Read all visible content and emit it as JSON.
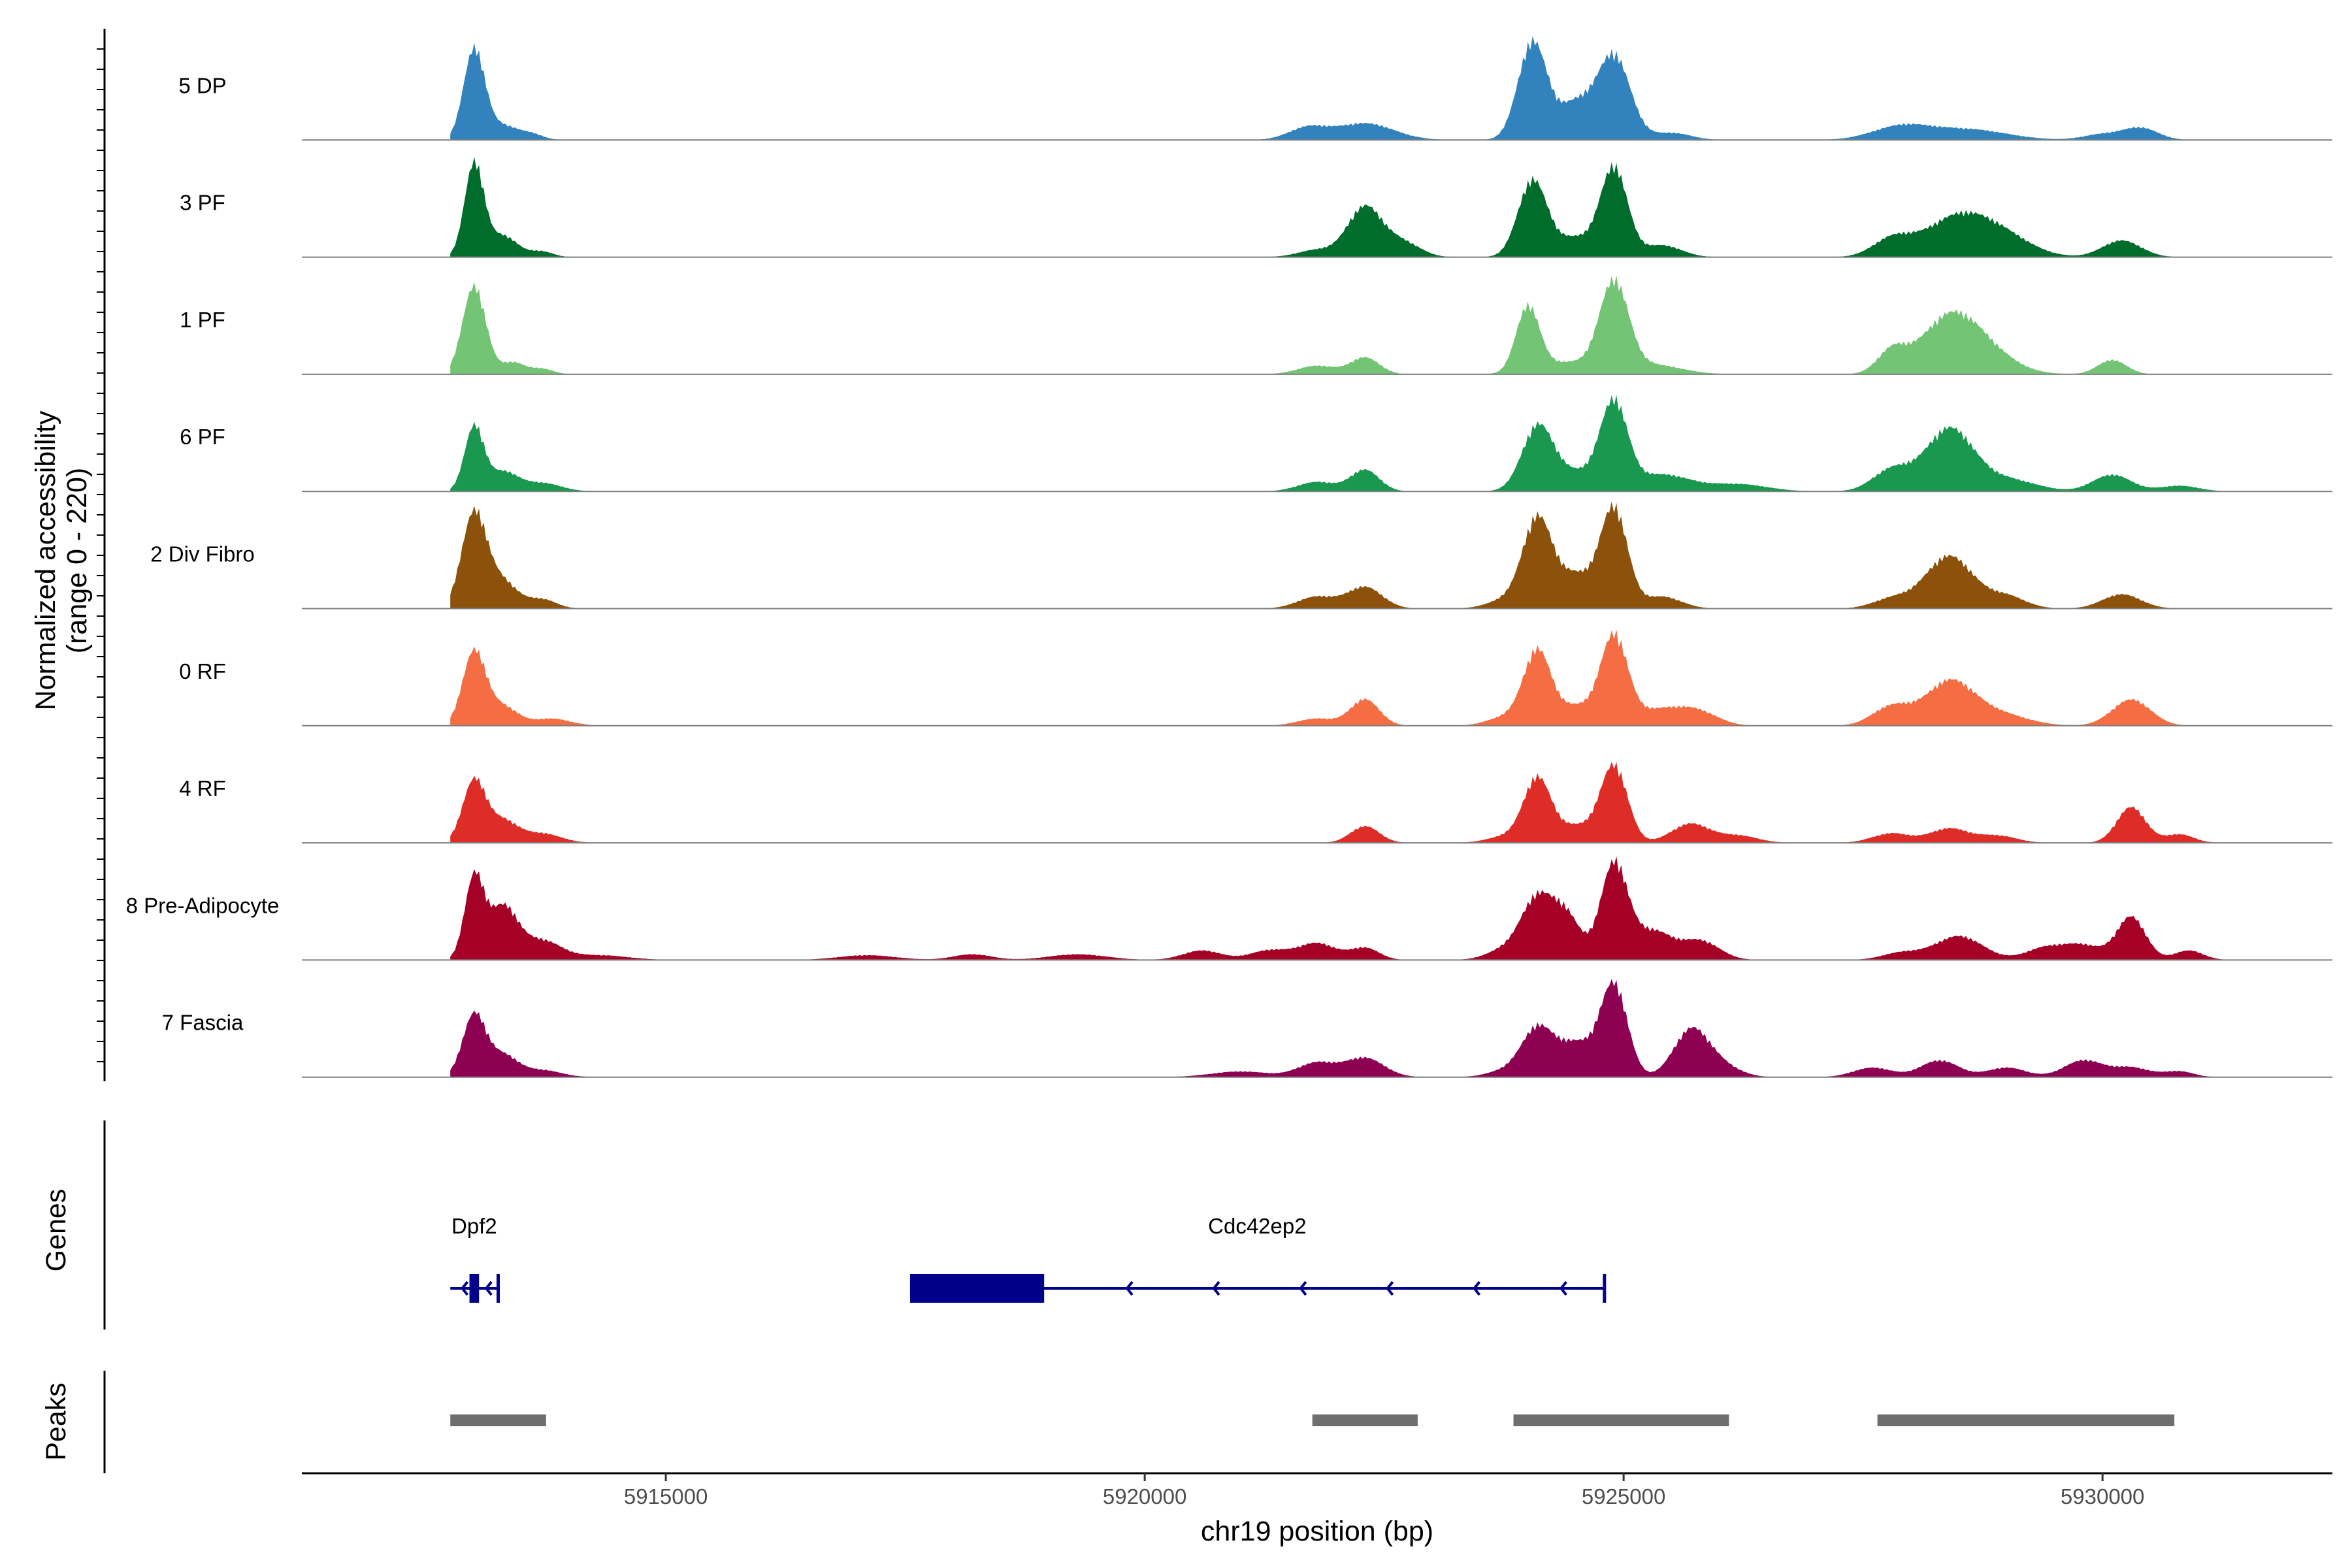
{
  "chart_data": {
    "type": "area",
    "title": "",
    "ylabel": "Normalized accessibility (range 0 - 220)",
    "ylabel_line1": "Normalized accessibility",
    "ylabel_line2": "(range 0 - 220)",
    "y_range": [
      0,
      220
    ],
    "xlabel": "chr19 position (bp)",
    "xlim": [
      5911200,
      5932400
    ],
    "x_ticks": [
      5915000,
      5920000,
      5925000,
      5930000
    ],
    "x_tick_labels": [
      "5915000",
      "5920000",
      "5925000",
      "5930000"
    ],
    "series": [
      {
        "name": "5 DP",
        "color": "#3182bd",
        "peaks": [
          [
            5913000,
            190,
            110
          ],
          [
            5913300,
            30,
            150
          ],
          [
            5913600,
            12,
            120
          ],
          [
            5921700,
            25,
            200
          ],
          [
            5922300,
            35,
            300
          ],
          [
            5924050,
            205,
            150
          ],
          [
            5924500,
            75,
            180
          ],
          [
            5924900,
            175,
            170
          ],
          [
            5925500,
            15,
            200
          ],
          [
            5927900,
            28,
            300
          ],
          [
            5928600,
            22,
            400
          ],
          [
            5930000,
            12,
            200
          ],
          [
            5930400,
            25,
            180
          ]
        ]
      },
      {
        "name": "3 PF",
        "color": "#006d2c",
        "peaks": [
          [
            5913000,
            195,
            100
          ],
          [
            5913300,
            45,
            150
          ],
          [
            5913700,
            12,
            120
          ],
          [
            5921800,
            15,
            200
          ],
          [
            5922300,
            105,
            180
          ],
          [
            5922700,
            30,
            180
          ],
          [
            5924050,
            160,
            150
          ],
          [
            5924500,
            40,
            200
          ],
          [
            5924900,
            185,
            140
          ],
          [
            5925400,
            25,
            200
          ],
          [
            5927800,
            35,
            200
          ],
          [
            5928500,
            85,
            350
          ],
          [
            5929000,
            30,
            300
          ],
          [
            5930200,
            35,
            200
          ]
        ]
      },
      {
        "name": "1 PF",
        "color": "#74c476",
        "peaks": [
          [
            5913000,
            185,
            120
          ],
          [
            5913400,
            25,
            120
          ],
          [
            5913700,
            12,
            120
          ],
          [
            5921800,
            18,
            200
          ],
          [
            5922300,
            35,
            150
          ],
          [
            5924000,
            135,
            120
          ],
          [
            5924400,
            25,
            300
          ],
          [
            5924900,
            185,
            150
          ],
          [
            5925300,
            20,
            300
          ],
          [
            5927800,
            45,
            150
          ],
          [
            5928400,
            115,
            300
          ],
          [
            5928800,
            35,
            300
          ],
          [
            5930100,
            30,
            150
          ]
        ]
      },
      {
        "name": "6 PF",
        "color": "#1a9850",
        "peaks": [
          [
            5913000,
            135,
            100
          ],
          [
            5913300,
            40,
            150
          ],
          [
            5913700,
            18,
            200
          ],
          [
            5921800,
            20,
            200
          ],
          [
            5922300,
            45,
            150
          ],
          [
            5924100,
            125,
            160
          ],
          [
            5924500,
            40,
            300
          ],
          [
            5924900,
            170,
            140
          ],
          [
            5925400,
            35,
            300
          ],
          [
            5926200,
            15,
            300
          ],
          [
            5927800,
            45,
            200
          ],
          [
            5928400,
            130,
            250
          ],
          [
            5929000,
            25,
            300
          ],
          [
            5930100,
            35,
            200
          ],
          [
            5930800,
            12,
            200
          ]
        ]
      },
      {
        "name": "2 Div Fibro",
        "color": "#8c510a",
        "peaks": [
          [
            5913000,
            200,
            130
          ],
          [
            5913300,
            55,
            150
          ],
          [
            5913700,
            20,
            150
          ],
          [
            5921800,
            25,
            200
          ],
          [
            5922300,
            45,
            180
          ],
          [
            5923800,
            20,
            200
          ],
          [
            5924100,
            180,
            150
          ],
          [
            5924500,
            70,
            200
          ],
          [
            5924900,
            205,
            140
          ],
          [
            5925400,
            25,
            200
          ],
          [
            5927800,
            20,
            200
          ],
          [
            5928400,
            110,
            250
          ],
          [
            5929000,
            25,
            200
          ],
          [
            5930200,
            30,
            200
          ]
        ]
      },
      {
        "name": "0 RF",
        "color": "#f46d43",
        "peaks": [
          [
            5913000,
            155,
            120
          ],
          [
            5913300,
            40,
            150
          ],
          [
            5913800,
            15,
            200
          ],
          [
            5921800,
            15,
            200
          ],
          [
            5922300,
            55,
            150
          ],
          [
            5923800,
            20,
            200
          ],
          [
            5924100,
            150,
            140
          ],
          [
            5924500,
            40,
            200
          ],
          [
            5924900,
            180,
            140
          ],
          [
            5925400,
            35,
            300
          ],
          [
            5925800,
            20,
            200
          ],
          [
            5927800,
            40,
            200
          ],
          [
            5928400,
            90,
            250
          ],
          [
            5928900,
            25,
            300
          ],
          [
            5930300,
            55,
            200
          ]
        ]
      },
      {
        "name": "4 RF",
        "color": "#de2d26",
        "peaks": [
          [
            5913000,
            130,
            120
          ],
          [
            5913300,
            45,
            150
          ],
          [
            5913700,
            20,
            200
          ],
          [
            5922300,
            35,
            150
          ],
          [
            5923800,
            15,
            200
          ],
          [
            5924100,
            130,
            140
          ],
          [
            5924500,
            35,
            200
          ],
          [
            5924900,
            160,
            140
          ],
          [
            5925700,
            40,
            200
          ],
          [
            5926200,
            15,
            200
          ],
          [
            5927800,
            20,
            200
          ],
          [
            5928400,
            30,
            200
          ],
          [
            5928900,
            15,
            200
          ],
          [
            5930300,
            75,
            150
          ],
          [
            5930800,
            18,
            150
          ]
        ]
      },
      {
        "name": "8 Pre-Adipocyte",
        "color": "#a50026",
        "peaks": [
          [
            5913000,
            170,
            100
          ],
          [
            5913300,
            110,
            150
          ],
          [
            5913700,
            40,
            200
          ],
          [
            5914300,
            10,
            300
          ],
          [
            5917100,
            10,
            300
          ],
          [
            5918200,
            12,
            200
          ],
          [
            5919300,
            12,
            300
          ],
          [
            5920600,
            20,
            200
          ],
          [
            5921300,
            20,
            200
          ],
          [
            5921800,
            35,
            200
          ],
          [
            5922300,
            25,
            150
          ],
          [
            5923800,
            25,
            200
          ],
          [
            5924100,
            120,
            160
          ],
          [
            5924400,
            90,
            150
          ],
          [
            5924900,
            200,
            140
          ],
          [
            5925300,
            60,
            200
          ],
          [
            5925800,
            40,
            200
          ],
          [
            5927900,
            15,
            200
          ],
          [
            5928500,
            50,
            250
          ],
          [
            5929400,
            25,
            200
          ],
          [
            5929800,
            30,
            200
          ],
          [
            5930300,
            90,
            150
          ],
          [
            5930900,
            20,
            150
          ]
        ]
      },
      {
        "name": "7 Fascia",
        "color": "#8e0152",
        "peaks": [
          [
            5913000,
            130,
            120
          ],
          [
            5913300,
            45,
            150
          ],
          [
            5913700,
            15,
            200
          ],
          [
            5921000,
            12,
            300
          ],
          [
            5921800,
            30,
            200
          ],
          [
            5922300,
            40,
            200
          ],
          [
            5923800,
            15,
            200
          ],
          [
            5924100,
            95,
            160
          ],
          [
            5924500,
            70,
            200
          ],
          [
            5924900,
            190,
            140
          ],
          [
            5925700,
            95,
            180
          ],
          [
            5926000,
            25,
            200
          ],
          [
            5927600,
            20,
            200
          ],
          [
            5928300,
            35,
            200
          ],
          [
            5929000,
            20,
            200
          ],
          [
            5929800,
            35,
            200
          ],
          [
            5930300,
            20,
            200
          ],
          [
            5930800,
            12,
            150
          ]
        ]
      }
    ],
    "genes_title": "Genes",
    "genes": [
      {
        "name": "Dpf2",
        "strand": "-",
        "start": 5912750,
        "end": 5913250,
        "exons": [
          [
            5912950,
            5913050
          ]
        ]
      },
      {
        "name": "Cdc42ep2",
        "strand": "-",
        "start": 5917550,
        "end": 5924800,
        "exons": [
          [
            5917550,
            5918950
          ]
        ]
      }
    ],
    "peaks_title": "Peaks",
    "peak_regions": [
      [
        5912750,
        5913750
      ],
      [
        5921750,
        5922850
      ],
      [
        5923850,
        5926100
      ],
      [
        5927650,
        5930750
      ]
    ]
  }
}
